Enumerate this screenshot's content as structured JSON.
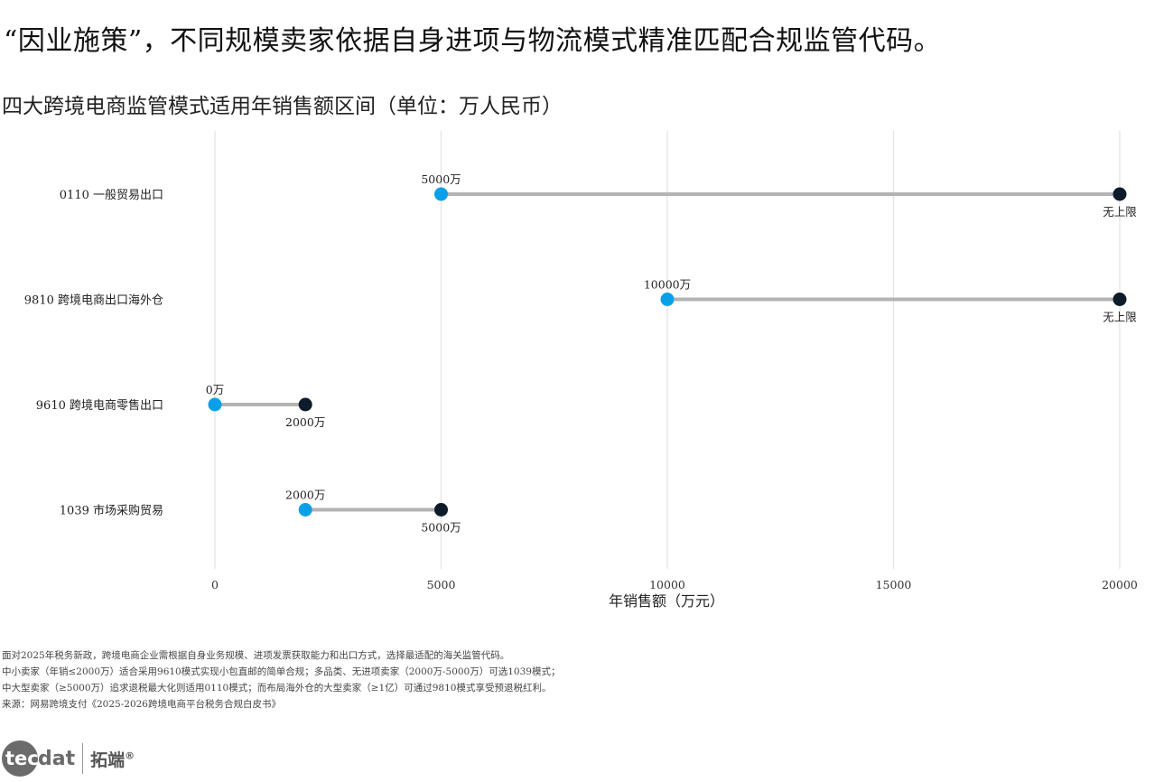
{
  "headline": "“因业施策”，不同规模卖家依据自身进项与物流模式精准匹配合规监管代码。",
  "logo": {
    "bubble": "tec",
    "rest": "dat",
    "cn": "拓端",
    "reg": "®"
  },
  "notes": [
    "面对2025年税务新政，跨境电商企业需根据自身业务规模、进项发票获取能力和出口方式，选择最适配的海关监管代码。",
    "中小卖家（年销≤2000万）适合采用9610模式实现小包直邮的简单合规；多品类、无进项卖家（2000万-5000万）可选1039模式；",
    "中大型卖家（≥5000万）追求退税最大化则适用0110模式；而布局海外仓的大型卖家（≥1亿）可通过9810模式享受预退税红利。",
    "来源：网易跨境支付《2025-2026跨境电商平台税务合规白皮书》"
  ],
  "chart_data": {
    "type": "dumbbell",
    "title": "四大跨境电商监管模式适用年销售额区间（单位：万人民币）",
    "xlabel": "年销售额（万元）",
    "xlim": [
      0,
      20000
    ],
    "xticks": [
      0,
      5000,
      10000,
      15000,
      20000
    ],
    "grid": true,
    "colors": {
      "start": "#0aa0e8",
      "end": "#0d1b2a",
      "bar": "#b3b3b3",
      "grid": "#e3e3e3"
    },
    "categories": [
      "0110 一般贸易出口",
      "9810 跨境电商出口海外仓",
      "9610 跨境电商零售出口",
      "1039 市场采购贸易"
    ],
    "rows": [
      {
        "category": "0110 一般贸易出口",
        "start": 5000,
        "end": 20000,
        "start_label": "5000万",
        "end_label": "无上限"
      },
      {
        "category": "9810 跨境电商出口海外仓",
        "start": 10000,
        "end": 20000,
        "start_label": "10000万",
        "end_label": "无上限"
      },
      {
        "category": "9610 跨境电商零售出口",
        "start": 0,
        "end": 2000,
        "start_label": "0万",
        "end_label": "2000万"
      },
      {
        "category": "1039 市场采购贸易",
        "start": 2000,
        "end": 5000,
        "start_label": "2000万",
        "end_label": "5000万"
      }
    ]
  }
}
